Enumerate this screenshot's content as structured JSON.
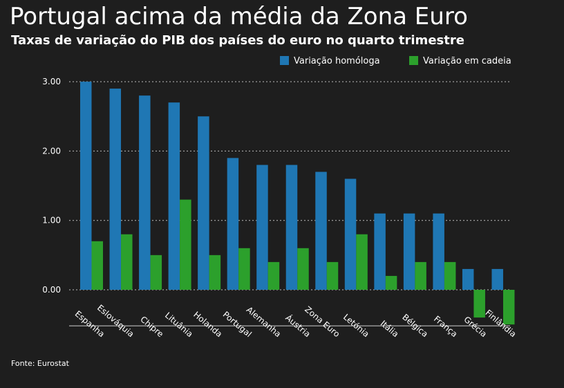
{
  "title": "Portugal acima da média da Zona Euro",
  "subtitle": "Taxas de variação do PIB dos países do euro no quarto trimestre",
  "source": "Fonte: Eurostat",
  "chart_data": {
    "type": "bar",
    "categories": [
      "Espanha",
      "Eslováquia",
      "Chipre",
      "Lituânia",
      "Holanda",
      "Portugal",
      "Alemanha",
      "Áustria",
      "Zona Euro",
      "Letónia",
      "Itália",
      "Bélgica",
      "França",
      "Grécia",
      "Finlândia"
    ],
    "series": [
      {
        "name": "Variação homóloga",
        "color": "#1f77b4",
        "values": [
          3.0,
          2.9,
          2.8,
          2.7,
          2.5,
          1.9,
          1.8,
          1.8,
          1.7,
          1.6,
          1.1,
          1.1,
          1.1,
          0.3,
          0.3
        ]
      },
      {
        "name": "Variação em cadeia",
        "color": "#2ca02c",
        "values": [
          0.7,
          0.8,
          0.5,
          1.3,
          0.5,
          0.6,
          0.4,
          0.6,
          0.4,
          0.8,
          0.2,
          0.4,
          0.4,
          -0.4,
          -0.5
        ]
      }
    ],
    "yticks": [
      "3.00",
      "2.00",
      "1.00",
      "0.00"
    ],
    "ylim": [
      -0.5,
      3.0
    ],
    "grid": true,
    "legend": "top-right",
    "xlabel": "",
    "ylabel": ""
  }
}
